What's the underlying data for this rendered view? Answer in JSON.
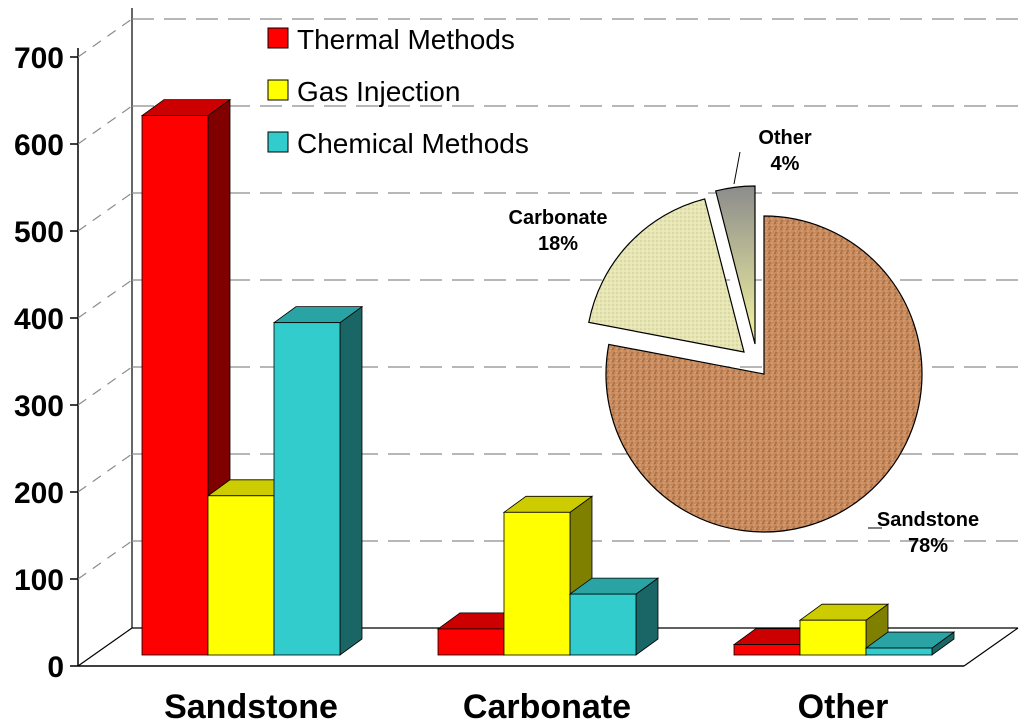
{
  "chart_data": [
    {
      "type": "bar",
      "style": "3d-clustered",
      "categories": [
        "Sandstone",
        "Carbonate",
        "Other"
      ],
      "series": [
        {
          "name": "Thermal Methods",
          "color": "#ff0000",
          "values": [
            620,
            30,
            12
          ]
        },
        {
          "name": "Gas Injection",
          "color": "#ffff00",
          "values": [
            183,
            164,
            40
          ]
        },
        {
          "name": "Chemical Methods",
          "color": "#33cccc",
          "values": [
            382,
            70,
            8
          ]
        }
      ],
      "y_ticks": [
        "0",
        "100",
        "200",
        "300",
        "400",
        "500",
        "600",
        "700"
      ],
      "ylim": [
        0,
        700
      ],
      "grid": true,
      "legend_position": "top"
    },
    {
      "type": "pie",
      "slices": [
        {
          "label": "Sandstone",
          "percent_label": "78%",
          "value": 78,
          "color": "#c98b5e"
        },
        {
          "label": "Carbonate",
          "percent_label": "18%",
          "value": 18,
          "color": "#e8e6b4"
        },
        {
          "label": "Other",
          "percent_label": "4%",
          "value": 4,
          "color": "#a8a8a8"
        }
      ]
    }
  ]
}
